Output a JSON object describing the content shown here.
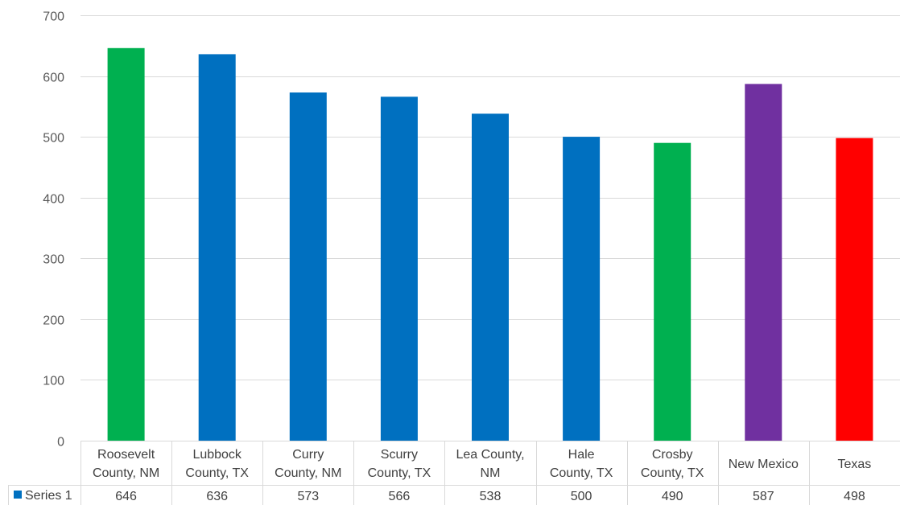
{
  "chart_data": {
    "type": "bar",
    "title": "",
    "xlabel": "",
    "ylabel": "",
    "ylim": [
      0,
      700
    ],
    "yticks": [
      0,
      100,
      200,
      300,
      400,
      500,
      600,
      700
    ],
    "grid": true,
    "legend": "data-table",
    "categories": [
      [
        "Roosevelt",
        "County, NM"
      ],
      [
        "Lubbock",
        "County, TX"
      ],
      [
        "Curry",
        "County, NM"
      ],
      [
        "Scurry",
        "County, TX"
      ],
      [
        "Lea County,",
        "NM"
      ],
      [
        "Hale",
        "County, TX"
      ],
      [
        "Crosby",
        "County, TX"
      ],
      [
        "New Mexico"
      ],
      [
        "Texas"
      ]
    ],
    "series": [
      {
        "name": "Series 1",
        "color": "#0070C0",
        "values": [
          646,
          636,
          573,
          566,
          538,
          500,
          490,
          587,
          498
        ],
        "point_colors": [
          "#00B050",
          "#0070C0",
          "#0070C0",
          "#0070C0",
          "#0070C0",
          "#0070C0",
          "#00B050",
          "#7030A0",
          "#FF0000"
        ]
      }
    ],
    "data_table_values": [
      "646",
      "636",
      "573",
      "566",
      "538",
      "500",
      "490",
      "587",
      "498"
    ]
  }
}
